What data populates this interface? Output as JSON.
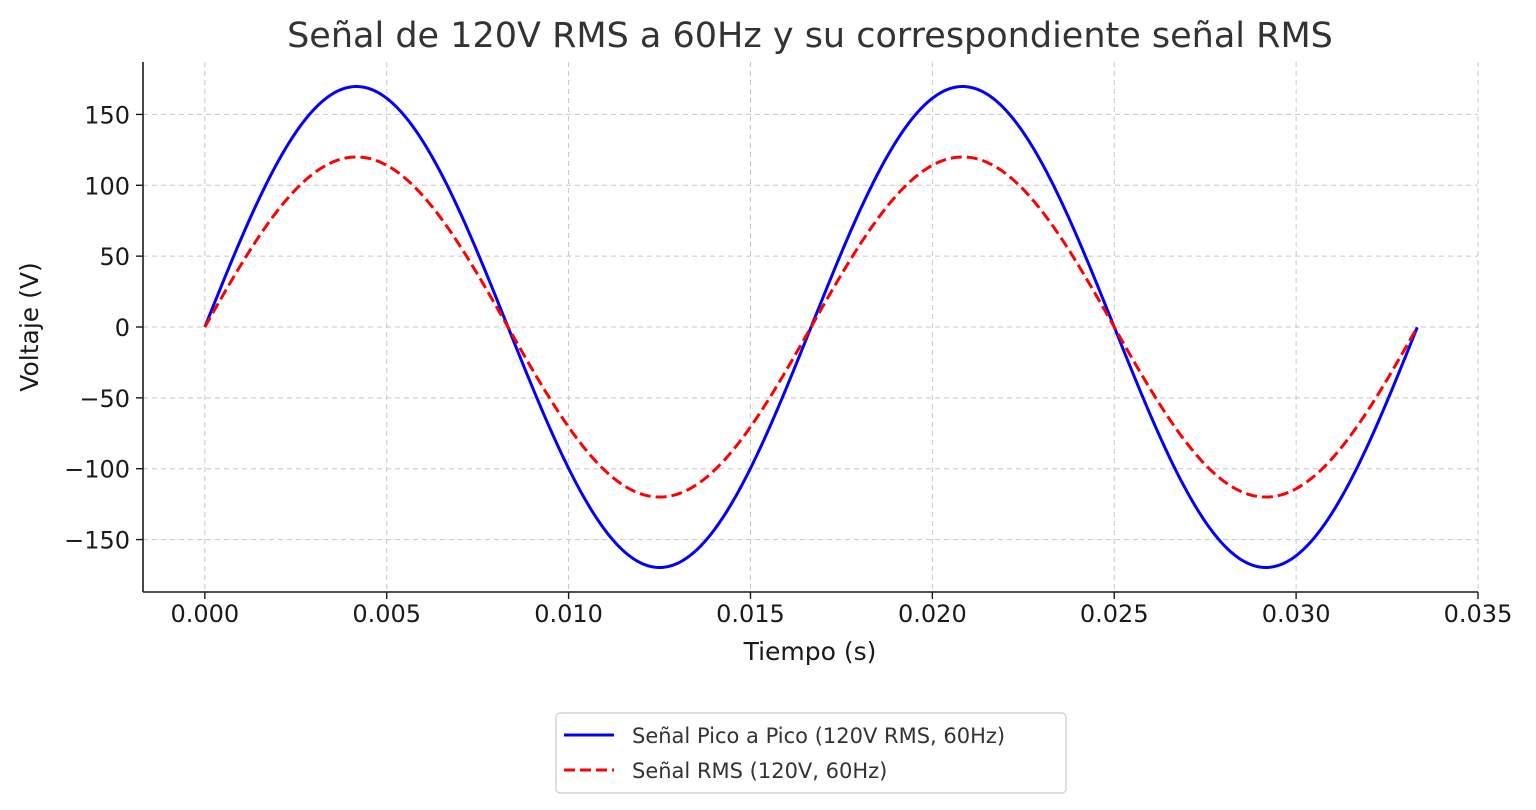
{
  "chart_data": {
    "type": "line",
    "title": "Señal de 120V RMS a 60Hz y su correspondiente señal RMS",
    "xlabel": "Tiempo (s)",
    "ylabel": "Voltaje (V)",
    "xlim": [
      -0.0017,
      0.035
    ],
    "ylim": [
      -187,
      187
    ],
    "xticks": [
      0.0,
      0.005,
      0.01,
      0.015,
      0.02,
      0.025,
      0.03,
      0.035
    ],
    "xtick_labels": [
      "0.000",
      "0.005",
      "0.010",
      "0.015",
      "0.020",
      "0.025",
      "0.030",
      "0.035"
    ],
    "yticks": [
      -150,
      -100,
      -50,
      0,
      50,
      100,
      150
    ],
    "ytick_labels": [
      "−150",
      "−100",
      "−50",
      "0",
      "50",
      "100",
      "150"
    ],
    "grid": true,
    "legend_position": "bottom-center-outside",
    "x_range": [
      0,
      0.03333
    ],
    "frequency_hz": 60,
    "series": [
      {
        "name": "Señal Pico a Pico (120V RMS, 60Hz)",
        "amplitude": 169.7,
        "color": "#0000ff",
        "style": "solid"
      },
      {
        "name": "Señal RMS (120V, 60Hz)",
        "amplitude": 120,
        "color": "#ff0000",
        "style": "dashed"
      }
    ]
  }
}
